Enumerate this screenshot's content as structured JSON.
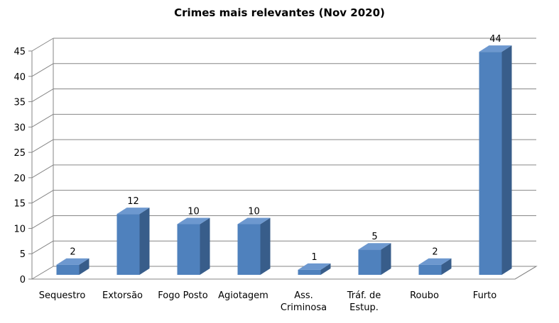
{
  "chart_data": {
    "type": "bar",
    "title": "Crimes mais relevantes (Nov 2020)",
    "categories": [
      [
        "Sequestro"
      ],
      [
        "Extorsão"
      ],
      [
        "Fogo Posto"
      ],
      [
        "Agiotagem"
      ],
      [
        "Ass.",
        "Criminosa"
      ],
      [
        "Tráf. de",
        "Estup."
      ],
      [
        "Roubo"
      ],
      [
        "Furto"
      ]
    ],
    "values": [
      2,
      12,
      10,
      10,
      1,
      5,
      2,
      44
    ],
    "data_labels": [
      "2",
      "12",
      "10",
      "10",
      "1",
      "5",
      "2",
      "44"
    ],
    "yticks": [
      "0",
      "5",
      "10",
      "15",
      "20",
      "25",
      "30",
      "35",
      "40",
      "45"
    ],
    "ylim": [
      0,
      45
    ],
    "grid": true,
    "bar_style": "3d",
    "colors": {
      "front": "#4f81bd",
      "top": "#6d98cf",
      "side": "#385d8a",
      "grid": "#868686",
      "axis": "#868686"
    }
  }
}
